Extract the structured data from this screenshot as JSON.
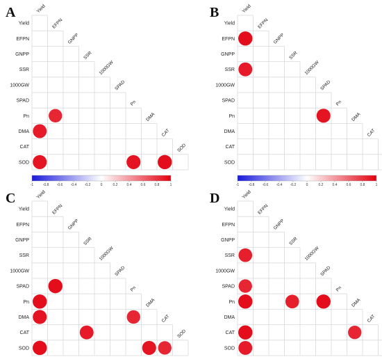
{
  "variables": [
    "Yield",
    "EFPN",
    "GNPP",
    "SSR",
    "1000GW",
    "SPAD",
    "Pn",
    "DMA",
    "CAT",
    "SOD"
  ],
  "colorbar": {
    "ticks": [
      "-1",
      "-0.8",
      "-0.6",
      "-0.4",
      "-0.2",
      "0",
      "0.2",
      "0.4",
      "0.6",
      "0.8",
      "1"
    ],
    "low_color": "#1a1adb",
    "mid_color": "#ffffff",
    "high_color": "#e30010"
  },
  "chart_data": [
    {
      "type": "heatmap",
      "panel": "A",
      "matrix": "lower-triangular correlation",
      "value_range": [
        -1,
        1
      ],
      "cells": [
        {
          "row": "Pn",
          "col": "EFPN",
          "value": 0.85
        },
        {
          "row": "DMA",
          "col": "Yield",
          "value": 0.9
        },
        {
          "row": "SOD",
          "col": "Yield",
          "value": 0.92
        },
        {
          "row": "SOD",
          "col": "Pn",
          "value": 0.92
        },
        {
          "row": "SOD",
          "col": "CAT",
          "value": 0.95
        }
      ]
    },
    {
      "type": "heatmap",
      "panel": "B",
      "matrix": "lower-triangular correlation",
      "value_range": [
        -1,
        1
      ],
      "cells": [
        {
          "row": "EFPN",
          "col": "Yield",
          "value": 0.95
        },
        {
          "row": "SSR",
          "col": "Yield",
          "value": 0.9
        },
        {
          "row": "Pn",
          "col": "SPAD",
          "value": 0.92
        }
      ]
    },
    {
      "type": "heatmap",
      "panel": "C",
      "matrix": "lower-triangular correlation",
      "value_range": [
        -1,
        1
      ],
      "cells": [
        {
          "row": "SPAD",
          "col": "EFPN",
          "value": 0.95
        },
        {
          "row": "Pn",
          "col": "Yield",
          "value": 0.95
        },
        {
          "row": "DMA",
          "col": "Yield",
          "value": 0.92
        },
        {
          "row": "DMA",
          "col": "Pn",
          "value": 0.85
        },
        {
          "row": "CAT",
          "col": "SSR",
          "value": 0.9
        },
        {
          "row": "SOD",
          "col": "Yield",
          "value": 0.95
        },
        {
          "row": "SOD",
          "col": "DMA",
          "value": 0.92
        },
        {
          "row": "SOD",
          "col": "CAT",
          "value": 0.85
        }
      ]
    },
    {
      "type": "heatmap",
      "panel": "D",
      "matrix": "lower-triangular correlation",
      "value_range": [
        -1,
        1
      ],
      "cells": [
        {
          "row": "SSR",
          "col": "Yield",
          "value": 0.88
        },
        {
          "row": "SPAD",
          "col": "Yield",
          "value": 0.85
        },
        {
          "row": "Pn",
          "col": "Yield",
          "value": 0.95
        },
        {
          "row": "Pn",
          "col": "SSR",
          "value": 0.88
        },
        {
          "row": "Pn",
          "col": "SPAD",
          "value": 0.95
        },
        {
          "row": "CAT",
          "col": "Yield",
          "value": 0.95
        },
        {
          "row": "CAT",
          "col": "DMA",
          "value": 0.85
        },
        {
          "row": "SOD",
          "col": "Yield",
          "value": 0.9
        }
      ]
    }
  ]
}
